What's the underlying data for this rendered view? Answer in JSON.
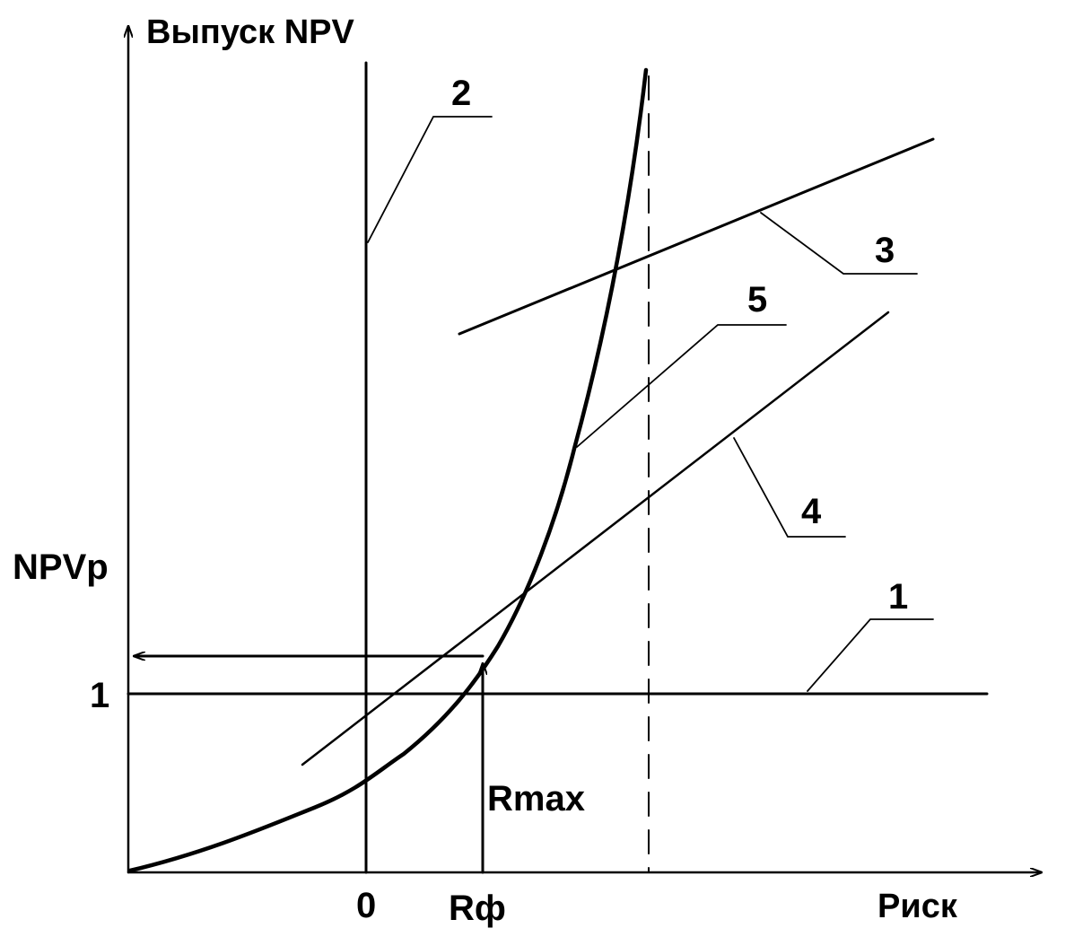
{
  "axes": {
    "y_label": "Выпуск NPV",
    "x_label": "Риск",
    "y_mark_npvp": "NPVp",
    "y_mark_one": "1",
    "x_mark_zero": "0",
    "x_mark_rf": "Rф",
    "rmax_label": "Rmax"
  },
  "curves": [
    {
      "id": "1",
      "label": "1"
    },
    {
      "id": "2",
      "label": "2"
    },
    {
      "id": "3",
      "label": "3"
    },
    {
      "id": "4",
      "label": "4"
    },
    {
      "id": "5",
      "label": "5"
    }
  ]
}
